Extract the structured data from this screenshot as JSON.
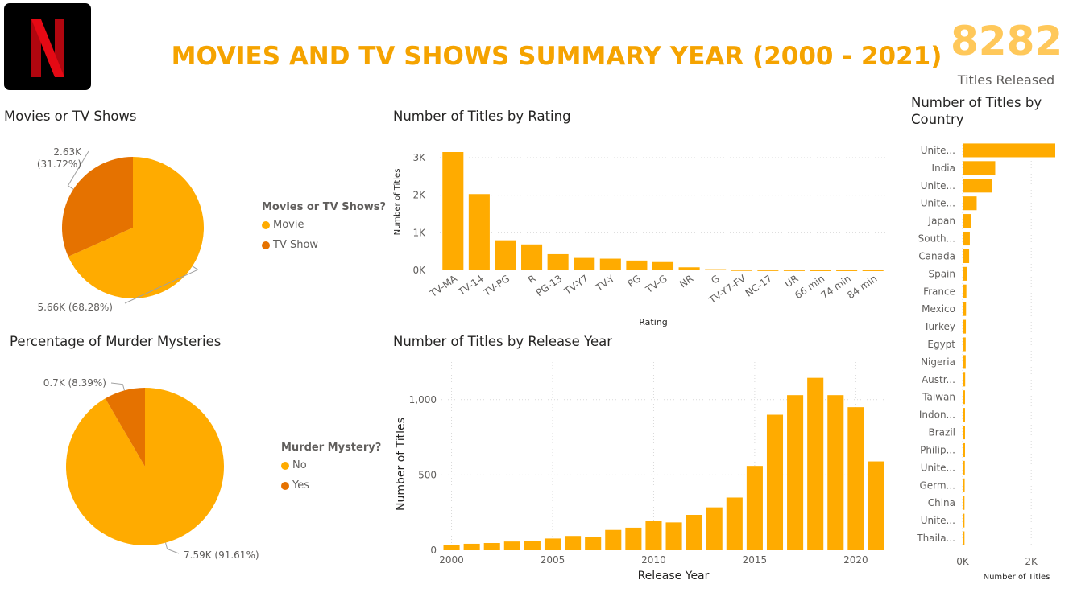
{
  "header": {
    "title": "MOVIES AND TV SHOWS SUMMARY YEAR (2000 - 2021)",
    "kpi_value": "8282",
    "kpi_label": "Titles Released",
    "logo_letter": "N"
  },
  "colors": {
    "primary": "#ffab00",
    "secondary": "#e57200",
    "kpi": "#ffc85a",
    "title": "#f5a300"
  },
  "chart_data": [
    {
      "id": "type_pie",
      "type": "pie",
      "title": "Movies or TV Shows",
      "legend_title": "Movies or TV Shows?",
      "slices": [
        {
          "label": "Movie",
          "value": 5660,
          "percent": 68.28,
          "data_label": "5.66K (68.28%)",
          "color": "#ffab00"
        },
        {
          "label": "TV Show",
          "value": 2630,
          "percent": 31.72,
          "data_label": "2.63K\n(31.72%)",
          "color": "#e57200"
        }
      ]
    },
    {
      "id": "murder_pie",
      "type": "pie",
      "title": "Percentage of Murder Mysteries",
      "legend_title": "Murder Mystery?",
      "slices": [
        {
          "label": "No",
          "value": 7590,
          "percent": 91.61,
          "data_label": "7.59K (91.61%)",
          "color": "#ffab00"
        },
        {
          "label": "Yes",
          "value": 700,
          "percent": 8.39,
          "data_label": "0.7K (8.39%)",
          "color": "#e57200"
        }
      ]
    },
    {
      "id": "rating_bar",
      "type": "bar",
      "title": "Number of Titles by Rating",
      "xlabel": "Rating",
      "ylabel": "Number of Titles",
      "categories": [
        "TV-MA",
        "TV-14",
        "TV-PG",
        "R",
        "PG-13",
        "TV-Y7",
        "TV-Y",
        "PG",
        "TV-G",
        "NR",
        "G",
        "TV-Y7-FV",
        "NC-17",
        "UR",
        "66 min",
        "74 min",
        "84 min"
      ],
      "shown_labels": [
        "TV-MA",
        "TV-14",
        "TV-PG",
        "R",
        "PG-13",
        "TV-Y7",
        "TV-Y",
        "PG",
        "TV-G",
        "NR",
        "G",
        "TV-Y7-FV",
        "NC-17",
        "UR",
        "66 min",
        "74 min",
        "84 min"
      ],
      "values": [
        3150,
        2030,
        800,
        690,
        430,
        330,
        310,
        260,
        220,
        80,
        30,
        6,
        3,
        3,
        1,
        1,
        1
      ],
      "ylim": [
        0,
        3300
      ],
      "yticks": [
        0,
        1000,
        2000,
        3000
      ],
      "ytick_labels": [
        "0K",
        "1K",
        "2K",
        "3K"
      ],
      "grid": true
    },
    {
      "id": "year_bar",
      "type": "bar",
      "title": "Number of Titles by Release Year",
      "xlabel": "Release Year",
      "ylabel": "Number of Titles",
      "categories": [
        2000,
        2001,
        2002,
        2003,
        2004,
        2005,
        2006,
        2007,
        2008,
        2009,
        2010,
        2011,
        2012,
        2013,
        2014,
        2015,
        2016,
        2017,
        2018,
        2019,
        2020,
        2021
      ],
      "values": [
        35,
        43,
        48,
        58,
        60,
        78,
        95,
        88,
        135,
        150,
        193,
        185,
        235,
        285,
        350,
        560,
        900,
        1030,
        1145,
        1030,
        950,
        590
      ],
      "ylim": [
        0,
        1250
      ],
      "yticks": [
        0,
        500,
        1000
      ],
      "ytick_labels": [
        "0",
        "500",
        "1,000"
      ],
      "xticks": [
        2000,
        2005,
        2010,
        2015,
        2020
      ],
      "grid": true
    },
    {
      "id": "country_bar",
      "type": "bar",
      "orientation": "horizontal",
      "title": "Number of Titles by\nCountry",
      "xlabel": "Number of Titles",
      "categories": [
        "Unite...",
        "India",
        "Unite...",
        "Unite...",
        "Japan",
        "South...",
        "Canada",
        "Spain",
        "France",
        "Mexico",
        "Turkey",
        "Egypt",
        "Nigeria",
        "Austr...",
        "Taiwan",
        "Indon...",
        "Brazil",
        "Philip...",
        "Unite...",
        "Germ...",
        "China",
        "Unite...",
        "Thaila..."
      ],
      "values": [
        2700,
        950,
        860,
        410,
        240,
        210,
        190,
        140,
        110,
        100,
        95,
        90,
        90,
        75,
        70,
        70,
        70,
        70,
        65,
        60,
        55,
        55,
        55
      ],
      "xlim": [
        0,
        2700
      ],
      "xticks": [
        0,
        2000
      ],
      "xtick_labels": [
        "0K",
        "2K"
      ],
      "grid": true
    }
  ]
}
